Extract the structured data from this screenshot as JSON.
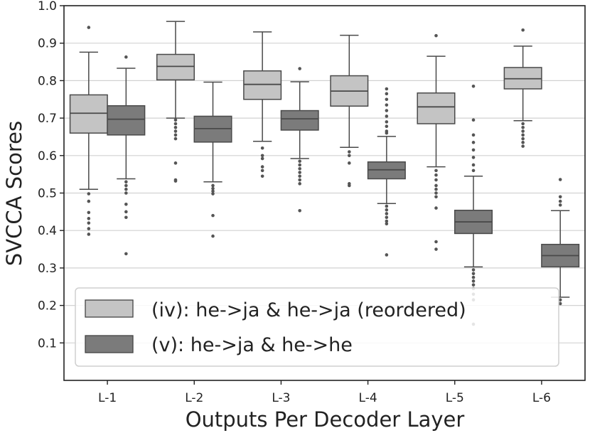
{
  "chart_data": {
    "type": "boxplot",
    "xlabel": "Outputs Per Decoder Layer",
    "ylabel": "SVCCA Scores",
    "ylim": [
      0.0,
      1.0
    ],
    "yticks": [
      "0.1",
      "0.2",
      "0.3",
      "0.4",
      "0.5",
      "0.6",
      "0.7",
      "0.8",
      "0.9",
      "1.0"
    ],
    "categories": [
      "L-1",
      "L-2",
      "L-3",
      "L-4",
      "L-5",
      "L-6"
    ],
    "grid": "horizontal",
    "legend_position": "lower-left",
    "series": [
      {
        "name": "(iv): he->ja & he->ja (reordered)",
        "color": "#c4c4c4",
        "boxes": [
          {
            "whisker_low": 0.51,
            "q1": 0.66,
            "median": 0.713,
            "q3": 0.762,
            "whisker_high": 0.876,
            "outliers": [
              0.942,
              0.498,
              0.478,
              0.448,
              0.432,
              0.42,
              0.405,
              0.39
            ]
          },
          {
            "whisker_low": 0.7,
            "q1": 0.802,
            "median": 0.838,
            "q3": 0.87,
            "whisker_high": 0.958,
            "outliers": [
              0.695,
              0.685,
              0.675,
              0.665,
              0.655,
              0.645,
              0.58,
              0.535,
              0.532
            ]
          },
          {
            "whisker_low": 0.638,
            "q1": 0.75,
            "median": 0.79,
            "q3": 0.826,
            "whisker_high": 0.93,
            "outliers": [
              0.62,
              0.6,
              0.592,
              0.57,
              0.56,
              0.545
            ]
          },
          {
            "whisker_low": 0.622,
            "q1": 0.732,
            "median": 0.772,
            "q3": 0.813,
            "whisker_high": 0.921,
            "outliers": [
              0.61,
              0.6,
              0.58,
              0.525,
              0.52
            ]
          },
          {
            "whisker_low": 0.57,
            "q1": 0.685,
            "median": 0.73,
            "q3": 0.767,
            "whisker_high": 0.865,
            "outliers": [
              0.92,
              0.56,
              0.548,
              0.535,
              0.52,
              0.51,
              0.5,
              0.49,
              0.46,
              0.37,
              0.35
            ]
          },
          {
            "whisker_low": 0.693,
            "q1": 0.778,
            "median": 0.805,
            "q3": 0.835,
            "whisker_high": 0.892,
            "outliers": [
              0.935,
              0.685,
              0.675,
              0.665,
              0.655,
              0.645,
              0.635,
              0.625
            ]
          }
        ]
      },
      {
        "name": "(v): he->ja & he->he",
        "color": "#7b7b7b",
        "boxes": [
          {
            "whisker_low": 0.538,
            "q1": 0.655,
            "median": 0.697,
            "q3": 0.733,
            "whisker_high": 0.833,
            "outliers": [
              0.863,
              0.53,
              0.52,
              0.51,
              0.5,
              0.47,
              0.45,
              0.435,
              0.338
            ]
          },
          {
            "whisker_low": 0.53,
            "q1": 0.636,
            "median": 0.672,
            "q3": 0.705,
            "whisker_high": 0.796,
            "outliers": [
              0.52,
              0.512,
              0.505,
              0.498,
              0.44,
              0.385
            ]
          },
          {
            "whisker_low": 0.592,
            "q1": 0.668,
            "median": 0.698,
            "q3": 0.72,
            "whisker_high": 0.797,
            "outliers": [
              0.832,
              0.585,
              0.575,
              0.565,
              0.555,
              0.545,
              0.535,
              0.525,
              0.453
            ]
          },
          {
            "whisker_low": 0.472,
            "q1": 0.538,
            "median": 0.562,
            "q3": 0.583,
            "whisker_high": 0.651,
            "outliers": [
              0.778,
              0.765,
              0.75,
              0.735,
              0.72,
              0.705,
              0.69,
              0.678,
              0.665,
              0.66,
              0.465,
              0.455,
              0.445,
              0.435,
              0.425,
              0.418,
              0.335
            ]
          },
          {
            "whisker_low": 0.303,
            "q1": 0.392,
            "median": 0.423,
            "q3": 0.454,
            "whisker_high": 0.545,
            "outliers": [
              0.785,
              0.695,
              0.655,
              0.635,
              0.615,
              0.595,
              0.575,
              0.56,
              0.295,
              0.285,
              0.275,
              0.265,
              0.255,
              0.245,
              0.23,
              0.215,
              0.15
            ]
          },
          {
            "whisker_low": 0.222,
            "q1": 0.303,
            "median": 0.333,
            "q3": 0.363,
            "whisker_high": 0.453,
            "outliers": [
              0.536,
              0.49,
              0.478,
              0.468,
              0.215,
              0.205
            ]
          }
        ]
      }
    ]
  }
}
